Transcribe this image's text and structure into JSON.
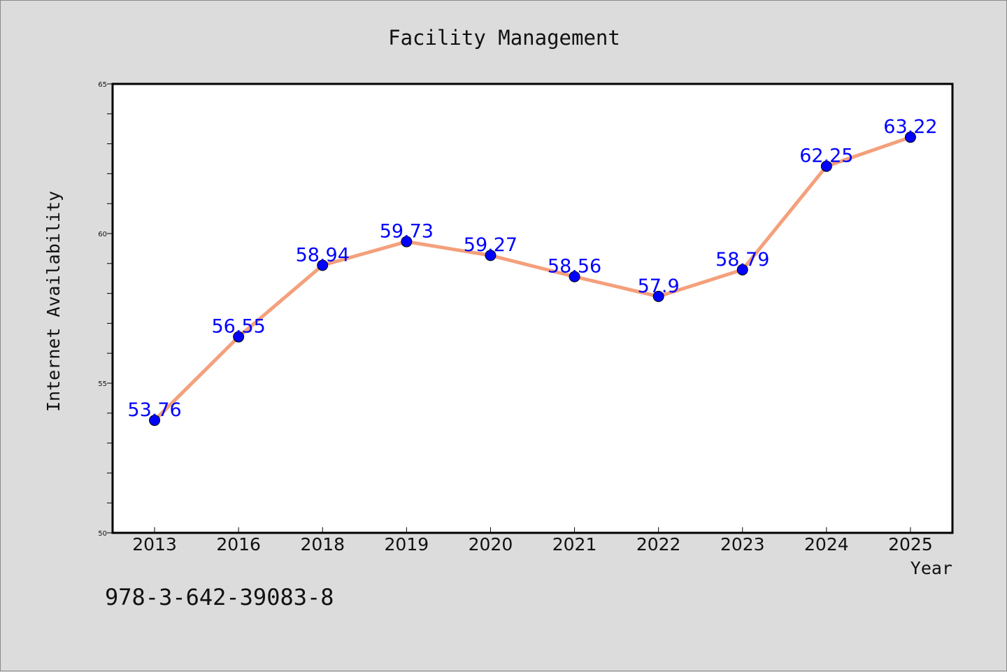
{
  "chart_data": {
    "type": "line",
    "title": "Facility Management",
    "xlabel": "Year",
    "ylabel": "Internet Availability",
    "categories": [
      "2013",
      "2016",
      "2018",
      "2019",
      "2020",
      "2021",
      "2022",
      "2023",
      "2024",
      "2025"
    ],
    "series": [
      {
        "values": [
          53.76,
          56.55,
          58.94,
          59.73,
          59.27,
          58.56,
          57.9,
          58.79,
          62.25,
          63.22
        ],
        "labels": [
          "53.76",
          "56.55",
          "58.94",
          "59.73",
          "59.27",
          "58.56",
          "57.9",
          "58.79",
          "62.25",
          "63.22"
        ],
        "line_color": "#f4a07c",
        "marker_color": "#0000ff",
        "label_color": "#0000ff"
      }
    ],
    "ylim": [
      50,
      65
    ],
    "y_major_ticks": [
      50,
      55,
      60,
      65
    ],
    "y_minor_step": 1,
    "grid": false,
    "legend": "none"
  },
  "footer": {
    "code": "978-3-642-39083-8"
  }
}
